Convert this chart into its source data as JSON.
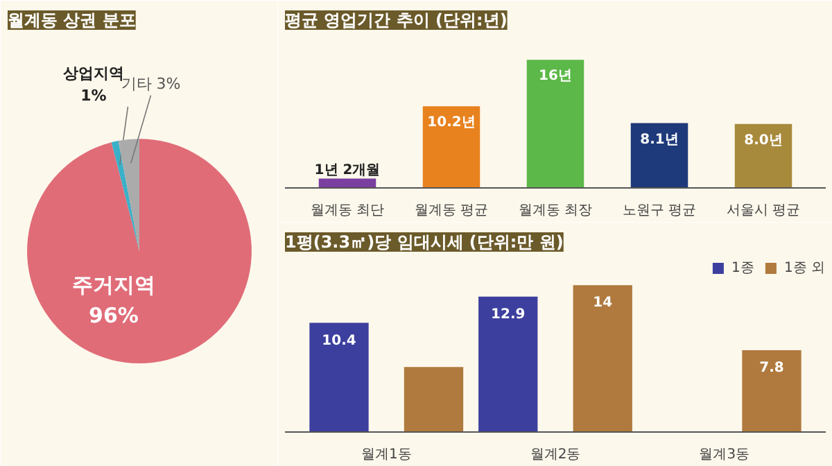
{
  "chart_data": [
    {
      "type": "pie",
      "title": "월계동 상권 분포",
      "categories": [
        "주거지역",
        "상업지역",
        "기타"
      ],
      "values": [
        96,
        1,
        3
      ],
      "colors": [
        "#e06c78",
        "#3ab0c8",
        "#ababab"
      ],
      "value_labels": [
        "96%",
        "1%",
        "3%"
      ]
    },
    {
      "type": "bar",
      "title": "평균 영업기간 추이 (단위:년)",
      "categories": [
        "월계동 최단",
        "월계동 평균",
        "월계동 최장",
        "노원구 평균",
        "서울시 평균"
      ],
      "values": [
        1.17,
        10.2,
        16,
        8.1,
        8.0
      ],
      "colors": [
        "#7b3fa0",
        "#e8821e",
        "#5cb848",
        "#1f3a7a",
        "#a88a3c"
      ],
      "value_labels": [
        "1년 2개월",
        "10.2년",
        "16년",
        "8.1년",
        "8.0년"
      ]
    },
    {
      "type": "bar",
      "title": "1평(3.3㎡)당 임대시세 (단위:만 원)",
      "categories": [
        "월계1동",
        "월계2동",
        "월계3동"
      ],
      "legend": "top right",
      "series": [
        {
          "name": "1종",
          "color": "#3c3f9e",
          "values": [
            10.4,
            12.9,
            null
          ],
          "value_labels": [
            "10.4",
            "12.9",
            null
          ]
        },
        {
          "name": "1종 외",
          "color": "#b07a3e",
          "values": [
            6.2,
            14,
            7.8
          ],
          "value_labels": [
            null,
            "14",
            "7.8"
          ]
        }
      ]
    }
  ]
}
